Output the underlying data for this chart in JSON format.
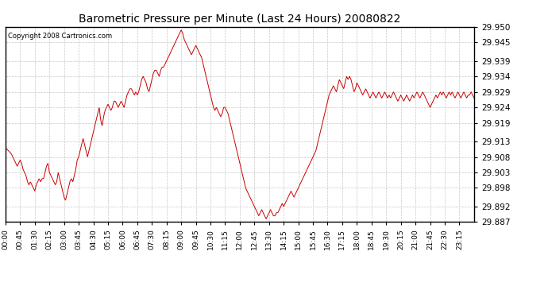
{
  "title": "Barometric Pressure per Minute (Last 24 Hours) 20080822",
  "copyright": "Copyright 2008 Cartronics.com",
  "line_color": "#cc0000",
  "bg_color": "#ffffff",
  "plot_bg_color": "#ffffff",
  "grid_color": "#c8c8c8",
  "ylim": [
    29.887,
    29.95
  ],
  "yticks": [
    29.887,
    29.892,
    29.898,
    29.903,
    29.908,
    29.913,
    29.919,
    29.924,
    29.929,
    29.934,
    29.939,
    29.945,
    29.95
  ],
  "xtick_labels": [
    "00:00",
    "00:45",
    "01:30",
    "02:15",
    "03:00",
    "03:45",
    "04:30",
    "05:15",
    "06:00",
    "06:45",
    "07:30",
    "08:15",
    "09:00",
    "09:45",
    "10:30",
    "11:15",
    "12:00",
    "12:45",
    "13:30",
    "14:15",
    "15:00",
    "15:45",
    "16:30",
    "17:15",
    "18:00",
    "18:45",
    "19:30",
    "20:15",
    "21:00",
    "21:45",
    "22:30",
    "23:15"
  ],
  "control_points": [
    [
      0,
      29.911
    ],
    [
      30,
      29.91
    ],
    [
      60,
      29.909
    ],
    [
      90,
      29.907
    ],
    [
      120,
      29.905
    ],
    [
      135,
      29.906
    ],
    [
      150,
      29.907
    ],
    [
      165,
      29.906
    ],
    [
      180,
      29.904
    ],
    [
      195,
      29.903
    ],
    [
      210,
      29.902
    ],
    [
      225,
      29.9
    ],
    [
      240,
      29.899
    ],
    [
      255,
      29.9
    ],
    [
      270,
      29.899
    ],
    [
      285,
      29.898
    ],
    [
      300,
      29.897
    ],
    [
      315,
      29.899
    ],
    [
      330,
      29.9
    ],
    [
      345,
      29.901
    ],
    [
      360,
      29.9
    ],
    [
      375,
      29.901
    ],
    [
      390,
      29.901
    ],
    [
      405,
      29.903
    ],
    [
      420,
      29.905
    ],
    [
      435,
      29.906
    ],
    [
      450,
      29.903
    ],
    [
      465,
      29.902
    ],
    [
      480,
      29.901
    ],
    [
      495,
      29.9
    ],
    [
      510,
      29.899
    ],
    [
      525,
      29.9
    ],
    [
      540,
      29.903
    ],
    [
      555,
      29.901
    ],
    [
      570,
      29.899
    ],
    [
      585,
      29.897
    ],
    [
      600,
      29.895
    ],
    [
      615,
      29.894
    ],
    [
      630,
      29.896
    ],
    [
      645,
      29.898
    ],
    [
      660,
      29.9
    ],
    [
      675,
      29.901
    ],
    [
      690,
      29.9
    ],
    [
      705,
      29.902
    ],
    [
      720,
      29.904
    ],
    [
      735,
      29.907
    ],
    [
      750,
      29.908
    ],
    [
      765,
      29.91
    ],
    [
      780,
      29.912
    ],
    [
      795,
      29.914
    ],
    [
      810,
      29.912
    ],
    [
      825,
      29.91
    ],
    [
      840,
      29.908
    ],
    [
      855,
      29.91
    ],
    [
      870,
      29.912
    ],
    [
      885,
      29.914
    ],
    [
      900,
      29.916
    ],
    [
      915,
      29.918
    ],
    [
      930,
      29.92
    ],
    [
      945,
      29.922
    ],
    [
      960,
      29.924
    ],
    [
      975,
      29.92
    ],
    [
      990,
      29.918
    ],
    [
      1005,
      29.921
    ],
    [
      1020,
      29.923
    ],
    [
      1035,
      29.924
    ],
    [
      1050,
      29.925
    ],
    [
      1065,
      29.924
    ],
    [
      1080,
      29.923
    ],
    [
      1095,
      29.924
    ],
    [
      1110,
      29.926
    ],
    [
      1125,
      29.926
    ],
    [
      1140,
      29.925
    ],
    [
      1155,
      29.924
    ],
    [
      1170,
      29.925
    ],
    [
      1185,
      29.926
    ],
    [
      1200,
      29.925
    ],
    [
      1215,
      29.924
    ],
    [
      1230,
      29.926
    ],
    [
      1245,
      29.928
    ],
    [
      1260,
      29.929
    ],
    [
      1275,
      29.93
    ],
    [
      1290,
      29.93
    ],
    [
      1305,
      29.929
    ],
    [
      1320,
      29.928
    ],
    [
      1335,
      29.929
    ],
    [
      1350,
      29.928
    ],
    [
      1365,
      29.929
    ],
    [
      1380,
      29.931
    ],
    [
      1395,
      29.933
    ],
    [
      1410,
      29.934
    ],
    [
      1425,
      29.933
    ],
    [
      1440,
      29.932
    ],
    [
      1455,
      29.93
    ],
    [
      1470,
      29.929
    ],
    [
      1485,
      29.931
    ],
    [
      1500,
      29.933
    ],
    [
      1515,
      29.935
    ],
    [
      1530,
      29.936
    ],
    [
      1545,
      29.936
    ],
    [
      1560,
      29.935
    ],
    [
      1575,
      29.934
    ],
    [
      1590,
      29.936
    ],
    [
      1605,
      29.937
    ],
    [
      1620,
      29.937
    ],
    [
      1635,
      29.938
    ],
    [
      1650,
      29.939
    ],
    [
      1665,
      29.94
    ],
    [
      1680,
      29.941
    ],
    [
      1695,
      29.942
    ],
    [
      1710,
      29.943
    ],
    [
      1725,
      29.944
    ],
    [
      1740,
      29.945
    ],
    [
      1755,
      29.946
    ],
    [
      1770,
      29.947
    ],
    [
      1785,
      29.948
    ],
    [
      1800,
      29.949
    ],
    [
      1815,
      29.948
    ],
    [
      1830,
      29.946
    ],
    [
      1845,
      29.945
    ],
    [
      1860,
      29.944
    ],
    [
      1875,
      29.943
    ],
    [
      1890,
      29.942
    ],
    [
      1905,
      29.941
    ],
    [
      1920,
      29.942
    ],
    [
      1935,
      29.943
    ],
    [
      1950,
      29.944
    ],
    [
      1965,
      29.943
    ],
    [
      1980,
      29.942
    ],
    [
      1995,
      29.941
    ],
    [
      2010,
      29.94
    ],
    [
      2025,
      29.938
    ],
    [
      2040,
      29.936
    ],
    [
      2055,
      29.934
    ],
    [
      2070,
      29.932
    ],
    [
      2085,
      29.93
    ],
    [
      2100,
      29.928
    ],
    [
      2115,
      29.926
    ],
    [
      2130,
      29.924
    ],
    [
      2145,
      29.923
    ],
    [
      2160,
      29.924
    ],
    [
      2175,
      29.923
    ],
    [
      2190,
      29.922
    ],
    [
      2205,
      29.921
    ],
    [
      2220,
      29.922
    ],
    [
      2235,
      29.924
    ],
    [
      2250,
      29.924
    ],
    [
      2265,
      29.923
    ],
    [
      2280,
      29.922
    ],
    [
      2295,
      29.92
    ],
    [
      2310,
      29.918
    ],
    [
      2325,
      29.916
    ],
    [
      2340,
      29.914
    ],
    [
      2355,
      29.912
    ],
    [
      2370,
      29.91
    ],
    [
      2385,
      29.908
    ],
    [
      2400,
      29.906
    ],
    [
      2415,
      29.904
    ],
    [
      2430,
      29.902
    ],
    [
      2445,
      29.9
    ],
    [
      2460,
      29.898
    ],
    [
      2475,
      29.897
    ],
    [
      2490,
      29.896
    ],
    [
      2505,
      29.895
    ],
    [
      2520,
      29.894
    ],
    [
      2535,
      29.893
    ],
    [
      2550,
      29.892
    ],
    [
      2565,
      29.891
    ],
    [
      2580,
      29.89
    ],
    [
      2595,
      29.889
    ],
    [
      2610,
      29.89
    ],
    [
      2625,
      29.891
    ],
    [
      2640,
      29.89
    ],
    [
      2655,
      29.889
    ],
    [
      2670,
      29.888
    ],
    [
      2685,
      29.889
    ],
    [
      2700,
      29.89
    ],
    [
      2715,
      29.891
    ],
    [
      2730,
      29.89
    ],
    [
      2745,
      29.889
    ],
    [
      2760,
      29.889
    ],
    [
      2775,
      29.89
    ],
    [
      2790,
      29.89
    ],
    [
      2805,
      29.891
    ],
    [
      2820,
      29.892
    ],
    [
      2835,
      29.893
    ],
    [
      2850,
      29.892
    ],
    [
      2865,
      29.893
    ],
    [
      2880,
      29.894
    ],
    [
      2895,
      29.895
    ],
    [
      2910,
      29.896
    ],
    [
      2925,
      29.897
    ],
    [
      2940,
      29.896
    ],
    [
      2955,
      29.895
    ],
    [
      2970,
      29.896
    ],
    [
      2985,
      29.897
    ],
    [
      3000,
      29.898
    ],
    [
      3015,
      29.899
    ],
    [
      3030,
      29.9
    ],
    [
      3045,
      29.901
    ],
    [
      3060,
      29.902
    ],
    [
      3075,
      29.903
    ],
    [
      3090,
      29.904
    ],
    [
      3105,
      29.905
    ],
    [
      3120,
      29.906
    ],
    [
      3135,
      29.907
    ],
    [
      3150,
      29.908
    ],
    [
      3165,
      29.909
    ],
    [
      3180,
      29.91
    ],
    [
      3195,
      29.912
    ],
    [
      3210,
      29.914
    ],
    [
      3225,
      29.916
    ],
    [
      3240,
      29.918
    ],
    [
      3255,
      29.92
    ],
    [
      3270,
      29.922
    ],
    [
      3285,
      29.924
    ],
    [
      3300,
      29.926
    ],
    [
      3315,
      29.928
    ],
    [
      3330,
      29.929
    ],
    [
      3345,
      29.93
    ],
    [
      3360,
      29.931
    ],
    [
      3375,
      29.93
    ],
    [
      3390,
      29.929
    ],
    [
      3405,
      29.931
    ],
    [
      3420,
      29.933
    ],
    [
      3435,
      29.932
    ],
    [
      3450,
      29.931
    ],
    [
      3465,
      29.93
    ],
    [
      3480,
      29.932
    ],
    [
      3495,
      29.934
    ],
    [
      3510,
      29.933
    ],
    [
      3525,
      29.934
    ],
    [
      3540,
      29.933
    ],
    [
      3555,
      29.931
    ],
    [
      3570,
      29.929
    ],
    [
      3585,
      29.93
    ],
    [
      3600,
      29.932
    ],
    [
      3615,
      29.931
    ],
    [
      3630,
      29.93
    ],
    [
      3645,
      29.929
    ],
    [
      3660,
      29.928
    ],
    [
      3675,
      29.929
    ],
    [
      3690,
      29.93
    ],
    [
      3705,
      29.929
    ],
    [
      3720,
      29.928
    ],
    [
      3735,
      29.927
    ],
    [
      3750,
      29.928
    ],
    [
      3765,
      29.929
    ],
    [
      3780,
      29.928
    ],
    [
      3795,
      29.927
    ],
    [
      3810,
      29.928
    ],
    [
      3825,
      29.929
    ],
    [
      3840,
      29.928
    ],
    [
      3855,
      29.927
    ],
    [
      3870,
      29.928
    ],
    [
      3885,
      29.929
    ],
    [
      3900,
      29.928
    ],
    [
      3915,
      29.927
    ],
    [
      3930,
      29.928
    ],
    [
      3945,
      29.927
    ],
    [
      3960,
      29.928
    ],
    [
      3975,
      29.929
    ],
    [
      3990,
      29.928
    ],
    [
      4005,
      29.927
    ],
    [
      4020,
      29.926
    ],
    [
      4035,
      29.927
    ],
    [
      4050,
      29.928
    ],
    [
      4065,
      29.927
    ],
    [
      4080,
      29.926
    ],
    [
      4095,
      29.927
    ],
    [
      4110,
      29.928
    ],
    [
      4125,
      29.927
    ],
    [
      4140,
      29.926
    ],
    [
      4155,
      29.927
    ],
    [
      4170,
      29.928
    ],
    [
      4185,
      29.927
    ],
    [
      4200,
      29.928
    ],
    [
      4215,
      29.929
    ],
    [
      4230,
      29.928
    ],
    [
      4245,
      29.927
    ],
    [
      4260,
      29.928
    ],
    [
      4275,
      29.929
    ],
    [
      4290,
      29.928
    ],
    [
      4305,
      29.927
    ],
    [
      4320,
      29.926
    ],
    [
      4335,
      29.925
    ],
    [
      4350,
      29.924
    ],
    [
      4365,
      29.925
    ],
    [
      4380,
      29.926
    ],
    [
      4395,
      29.927
    ],
    [
      4410,
      29.928
    ],
    [
      4425,
      29.927
    ],
    [
      4440,
      29.928
    ],
    [
      4455,
      29.929
    ],
    [
      4470,
      29.928
    ],
    [
      4485,
      29.929
    ],
    [
      4500,
      29.928
    ],
    [
      4515,
      29.927
    ],
    [
      4530,
      29.928
    ],
    [
      4545,
      29.929
    ],
    [
      4560,
      29.928
    ],
    [
      4575,
      29.929
    ],
    [
      4590,
      29.928
    ],
    [
      4605,
      29.927
    ],
    [
      4620,
      29.928
    ],
    [
      4635,
      29.929
    ],
    [
      4650,
      29.928
    ],
    [
      4665,
      29.927
    ],
    [
      4680,
      29.928
    ],
    [
      4695,
      29.929
    ],
    [
      4710,
      29.928
    ],
    [
      4725,
      29.927
    ],
    [
      4740,
      29.928
    ],
    [
      4755,
      29.928
    ],
    [
      4770,
      29.929
    ],
    [
      4785,
      29.928
    ],
    [
      4800,
      29.927
    ]
  ]
}
